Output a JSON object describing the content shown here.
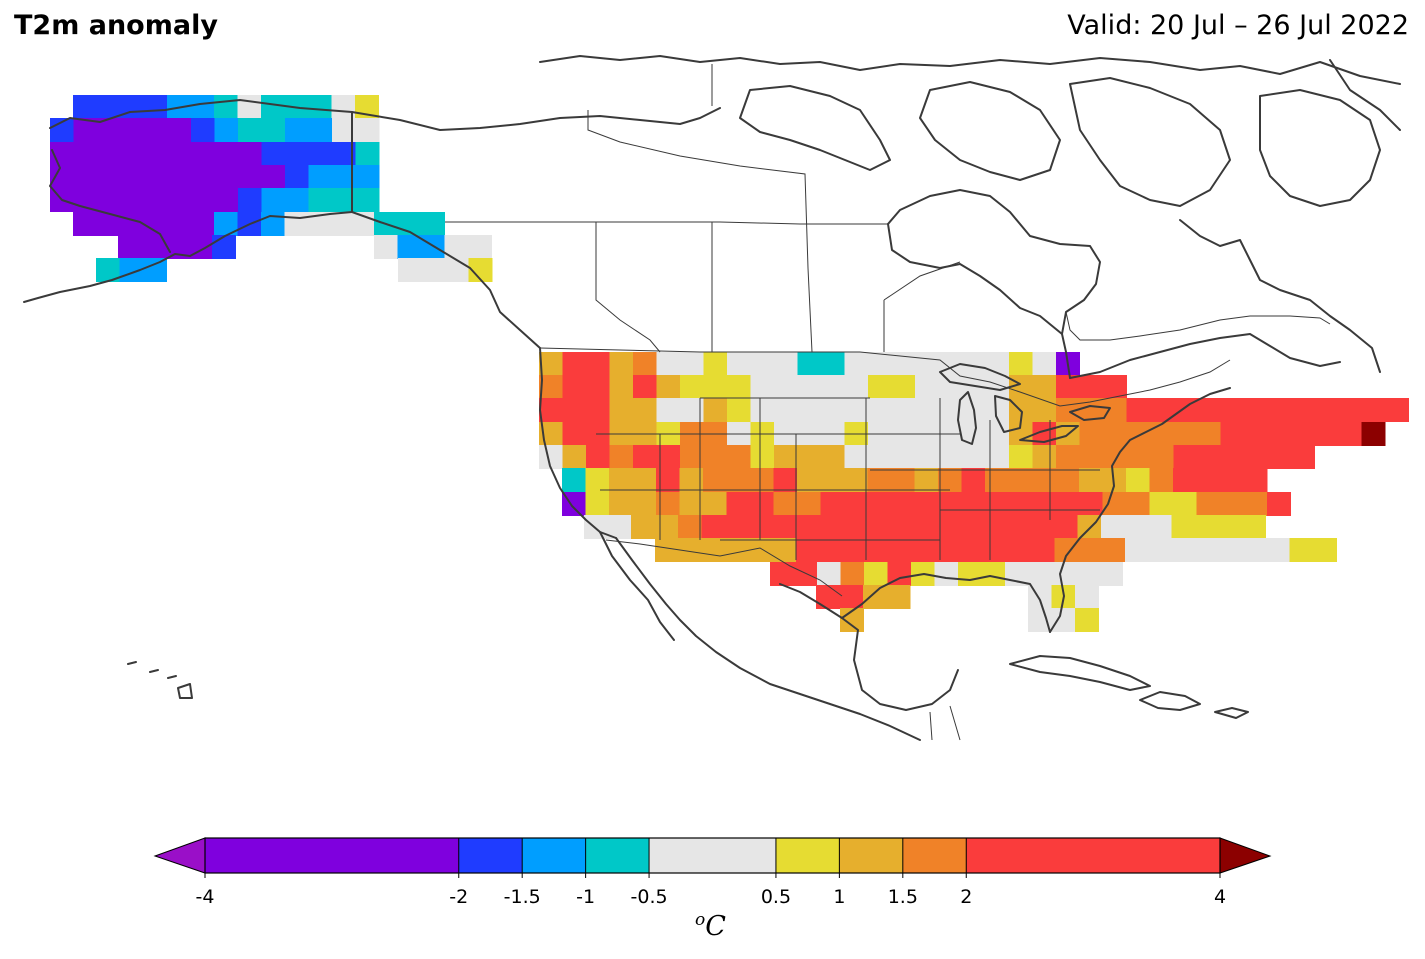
{
  "title": "T2m anomaly",
  "valid": "Valid: 20 Jul – 26 Jul 2022",
  "colorbar": {
    "units_sup": "o",
    "units_main": "C",
    "ticks": [
      "-4",
      "-2",
      "-1.5",
      "-1",
      "-0.5",
      "0.5",
      "1",
      "1.5",
      "2",
      "4"
    ],
    "colors": {
      "lt_neg4": "#9a0fc8",
      "neg4_neg2": "#7f00de",
      "neg2_neg1_5": "#1f3cff",
      "neg1_5_neg1": "#009eff",
      "neg1_neg0_5": "#00c8c8",
      "neg0_5_0_5": "#e6e6e6",
      "p0_5_1": "#e6dc32",
      "p1_1_5": "#e6af2d",
      "p1_5_2": "#f08228",
      "p2_4": "#fa3c3c",
      "gt4": "#8c0000"
    }
  },
  "map": {
    "legend_key": "V=violet, B=blue, L=light-blue, C=cyan, G=neutral, Y=yellow, A=amber, O=orange, R=red, D=dark-red",
    "grid_rows": [
      {
        "x0": 73,
        "y0": 95,
        "cells": "BBBBLLCGCCCGY"
      },
      {
        "x0": 50,
        "y0": 118,
        "cells": "BVVVVVBLCCLLGG"
      },
      {
        "x0": 50,
        "y0": 142,
        "cells": "VVVVVVVVVBBBBC"
      },
      {
        "x0": 50,
        "y0": 165,
        "cells": "VVVVVVVVVVBLLL"
      },
      {
        "x0": 50,
        "y0": 188,
        "cells": "VVVVVVVVBLLCCC"
      },
      {
        "x0": 73,
        "y0": 212,
        "cells": "VVVVVVLBLGGGG"
      },
      {
        "x0": 118,
        "y0": 235,
        "cells": "VVVVB"
      },
      {
        "x0": 96,
        "y0": 258,
        "cells": "CLL"
      },
      {
        "x0": 374,
        "y0": 212,
        "cells": "CCC"
      },
      {
        "x0": 374,
        "y0": 235,
        "cells": "GLLGG"
      },
      {
        "x0": 398,
        "y0": 258,
        "cells": "GGGY"
      },
      {
        "x0": 539,
        "y0": 352,
        "cells": "ARRAOGGYGGGCCGGGGGGGYGV"
      },
      {
        "x0": 539,
        "y0": 375,
        "cells": "ORRARAYYYGGGGGYYGGGGAARRR"
      },
      {
        "x0": 539,
        "y0": 398,
        "cells": "RRRAAGGAYGGGGGGGGGGGAAOOORRRRRRRRRRRR"
      },
      {
        "x0": 539,
        "y0": 422,
        "cells": "ARRAAYOOGYGGGYGGGGGGARAOOOOOORRRRRRD"
      },
      {
        "x0": 539,
        "y0": 445,
        "cells": "GARORROOOYAAAGGGGGGGYAOOOOORRRRRR"
      },
      {
        "x0": 562,
        "y0": 468,
        "cells": "CYAARAOOORAAAOOAOROOOOAAYORRRR"
      },
      {
        "x0": 562,
        "y0": 492,
        "cells": "VYAAOAARROORRRRRRRRRRRROOYYOOOR"
      },
      {
        "x0": 584,
        "y0": 515,
        "cells": "GGAAORRRRRRRRRRRRRRRRAGGGYYYY"
      },
      {
        "x0": 655,
        "y0": 538,
        "cells": "AAAAAARRRRRRRRRRROOOGGGGGGGYY"
      },
      {
        "x0": 770,
        "y0": 562,
        "cells": "RRGOYRYGYYGGGGG"
      },
      {
        "x0": 816,
        "y0": 585,
        "cells": "RRAA"
      },
      {
        "x0": 1028,
        "y0": 585,
        "cells": "GYG"
      },
      {
        "x0": 840,
        "y0": 608,
        "cells": "A"
      },
      {
        "x0": 1028,
        "y0": 608,
        "cells": "GGY"
      }
    ]
  }
}
